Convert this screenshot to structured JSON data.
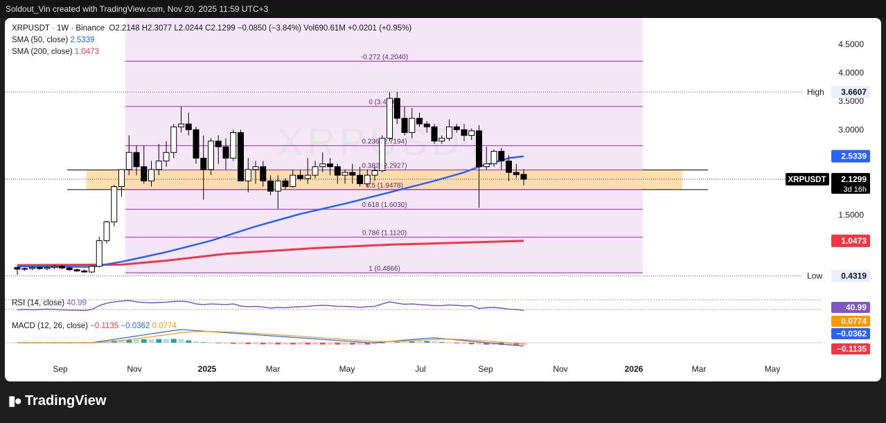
{
  "header": {
    "credit": "Soldout_Vin created with TradingView.com, Nov 20, 2025 11:59 UTC+3"
  },
  "brand": {
    "name": "TradingView"
  },
  "legend": {
    "symbol": "XRPUSDT · 1W · Binance",
    "ohlc": "O2.2148 H2.3077 L2.0244 C2.1299 −0.0850 (−3.84%) Vol690.61M +0.0201 (+0.95%)",
    "sma50_label": "SMA (50, close)",
    "sma50_value": "2.5339",
    "sma200_label": "SMA (200, close)",
    "sma200_value": "1.0473",
    "rsi_label": "RSI (14, close)",
    "rsi_value": "40.99",
    "macd_label": "MACD (12, 26, close)",
    "macd_v1": "−0.1135",
    "macd_v2": "−0.0362",
    "macd_v3": "0.0774"
  },
  "watermark": "XRPUSDT",
  "colors": {
    "sma50": "#2962ff",
    "sma200": "#f23645",
    "fib": "#9c27b0",
    "zone": "#ffd9a0",
    "rsi": "#7e57c2",
    "macd": "#2962ff",
    "signal": "#ff9800",
    "up": "#ffffff",
    "down": "#000000"
  },
  "chart_data": [
    {
      "type": "candlestick",
      "title": "XRPUSDT · 1W · Binance",
      "x_ticks": [
        "Sep",
        "Nov",
        "2025",
        "Mar",
        "May",
        "Jul",
        "Sep",
        "Nov",
        "2026",
        "Mar",
        "May"
      ],
      "y_ticks": [
        "4.5000",
        "4.0000",
        "3.5000",
        "3.0000",
        "2.5000",
        "1.5000"
      ],
      "ylim": [
        0.25,
        4.85
      ],
      "price_badges": {
        "high": {
          "label": "High",
          "value": "3.6607"
        },
        "sma50": {
          "value": "2.5339"
        },
        "last": {
          "label": "XRPUSDT",
          "value": "2.1299",
          "countdown": "3d 16h"
        },
        "sma200": {
          "value": "1.0473"
        },
        "low": {
          "label": "Low",
          "value": "0.4319"
        }
      },
      "fib_levels": [
        {
          "ratio": -0.272,
          "price": 4.204,
          "label": "-0.272 (4.2040)"
        },
        {
          "ratio": 0,
          "price": 3.4091,
          "label": "0 (3.4091)"
        },
        {
          "ratio": 0.236,
          "price": 2.7194,
          "label": "0.236 (2.7194)"
        },
        {
          "ratio": 0.382,
          "price": 2.2927,
          "label": "0.382 (2.2927)"
        },
        {
          "ratio": 0.5,
          "price": 1.9478,
          "label": "0.5 (1.9478)"
        },
        {
          "ratio": 0.618,
          "price": 1.603,
          "label": "0.618 (1.6030)"
        },
        {
          "ratio": 0.786,
          "price": 1.112,
          "label": "0.786 (1.1120)"
        },
        {
          "ratio": 1,
          "price": 0.4866,
          "label": "1 (0.4866)"
        }
      ],
      "support_zone": [
        1.9478,
        2.2927
      ],
      "candles": [
        [
          0.58,
          0.6,
          0.45,
          0.55
        ],
        [
          0.55,
          0.58,
          0.52,
          0.56
        ],
        [
          0.56,
          0.6,
          0.53,
          0.58
        ],
        [
          0.58,
          0.6,
          0.54,
          0.56
        ],
        [
          0.56,
          0.6,
          0.53,
          0.58
        ],
        [
          0.58,
          0.63,
          0.55,
          0.6
        ],
        [
          0.6,
          0.62,
          0.55,
          0.57
        ],
        [
          0.57,
          0.59,
          0.52,
          0.54
        ],
        [
          0.54,
          0.56,
          0.5,
          0.52
        ],
        [
          0.52,
          0.55,
          0.49,
          0.5
        ],
        [
          0.5,
          0.62,
          0.48,
          0.6
        ],
        [
          0.6,
          1.12,
          0.58,
          1.05
        ],
        [
          1.05,
          1.4,
          1.0,
          1.38
        ],
        [
          1.38,
          2.03,
          1.3,
          2.0
        ],
        [
          2.0,
          2.28,
          1.82,
          2.3
        ],
        [
          2.3,
          2.9,
          2.2,
          2.6
        ],
        [
          2.6,
          2.72,
          2.2,
          2.35
        ],
        [
          2.35,
          2.72,
          2.05,
          2.1
        ],
        [
          2.1,
          2.45,
          2.0,
          2.3
        ],
        [
          2.3,
          2.75,
          2.2,
          2.45
        ],
        [
          2.45,
          2.8,
          2.35,
          2.6
        ],
        [
          2.6,
          3.1,
          2.5,
          3.05
        ],
        [
          3.05,
          3.4,
          2.95,
          3.1
        ],
        [
          3.1,
          3.3,
          2.9,
          3.0
        ],
        [
          3.0,
          3.05,
          2.4,
          2.5
        ],
        [
          2.5,
          2.9,
          1.77,
          2.3
        ],
        [
          2.3,
          2.85,
          2.2,
          2.8
        ],
        [
          2.8,
          2.9,
          2.4,
          2.7
        ],
        [
          2.7,
          2.85,
          2.3,
          2.5
        ],
        [
          2.5,
          3.0,
          2.45,
          2.95
        ],
        [
          2.95,
          3.0,
          2.1,
          2.1
        ],
        [
          2.1,
          2.5,
          1.9,
          2.3
        ],
        [
          2.3,
          2.45,
          2.05,
          2.35
        ],
        [
          2.35,
          2.45,
          2.0,
          2.1
        ],
        [
          2.1,
          2.2,
          1.85,
          1.92
        ],
        [
          1.92,
          2.2,
          1.61,
          2.1
        ],
        [
          2.1,
          2.15,
          1.95,
          2.0
        ],
        [
          2.0,
          2.3,
          1.98,
          2.2
        ],
        [
          2.2,
          2.3,
          2.1,
          2.14
        ],
        [
          2.14,
          2.5,
          2.05,
          2.2
        ],
        [
          2.2,
          2.45,
          2.15,
          2.35
        ],
        [
          2.35,
          2.6,
          2.25,
          2.4
        ],
        [
          2.4,
          2.5,
          2.2,
          2.35
        ],
        [
          2.35,
          2.4,
          2.05,
          2.2
        ],
        [
          2.2,
          2.3,
          2.05,
          2.25
        ],
        [
          2.25,
          2.4,
          2.05,
          2.2
        ],
        [
          2.2,
          2.35,
          2.0,
          2.05
        ],
        [
          2.05,
          2.3,
          2.0,
          2.2
        ],
        [
          2.2,
          2.35,
          2.1,
          2.28
        ],
        [
          2.28,
          2.9,
          2.25,
          2.85
        ],
        [
          2.85,
          3.66,
          2.8,
          3.55
        ],
        [
          3.55,
          3.66,
          3.1,
          3.2
        ],
        [
          3.2,
          3.4,
          2.9,
          2.95
        ],
        [
          2.95,
          3.38,
          2.85,
          3.2
        ],
        [
          3.2,
          3.3,
          3.05,
          3.1
        ],
        [
          3.1,
          3.15,
          2.95,
          3.05
        ],
        [
          3.05,
          3.1,
          2.75,
          2.8
        ],
        [
          2.8,
          2.9,
          2.75,
          2.85
        ],
        [
          2.85,
          3.18,
          2.8,
          3.05
        ],
        [
          3.05,
          3.1,
          2.95,
          3.0
        ],
        [
          3.0,
          3.1,
          2.8,
          2.9
        ],
        [
          2.9,
          3.02,
          2.82,
          2.98
        ],
        [
          2.98,
          3.08,
          1.63,
          2.35
        ],
        [
          2.35,
          2.7,
          2.3,
          2.4
        ],
        [
          2.4,
          2.65,
          2.35,
          2.62
        ],
        [
          2.62,
          2.68,
          2.3,
          2.45
        ],
        [
          2.45,
          2.55,
          2.1,
          2.25
        ],
        [
          2.25,
          2.4,
          2.15,
          2.21
        ],
        [
          2.2148,
          2.3077,
          2.0244,
          2.1299
        ]
      ],
      "sma50": [
        [
          0,
          0.6
        ],
        [
          10,
          0.59
        ],
        [
          14,
          0.68
        ],
        [
          20,
          0.85
        ],
        [
          26,
          1.05
        ],
        [
          32,
          1.3
        ],
        [
          38,
          1.52
        ],
        [
          44,
          1.7
        ],
        [
          50,
          1.9
        ],
        [
          56,
          2.1
        ],
        [
          60,
          2.25
        ],
        [
          62,
          2.35
        ],
        [
          64,
          2.42
        ],
        [
          66,
          2.5
        ],
        [
          68,
          2.5339
        ]
      ],
      "sma200": [
        [
          0,
          0.62
        ],
        [
          14,
          0.63
        ],
        [
          20,
          0.7
        ],
        [
          28,
          0.82
        ],
        [
          40,
          0.92
        ],
        [
          50,
          0.98
        ],
        [
          58,
          1.01
        ],
        [
          68,
          1.0473
        ]
      ],
      "rsi": {
        "label": "RSI (14, close)",
        "value": 40.99
      },
      "macd": {
        "label": "MACD (12, 26, close)",
        "macd": -0.0362,
        "signal": 0.0774,
        "histogram": -0.1135
      }
    }
  ]
}
